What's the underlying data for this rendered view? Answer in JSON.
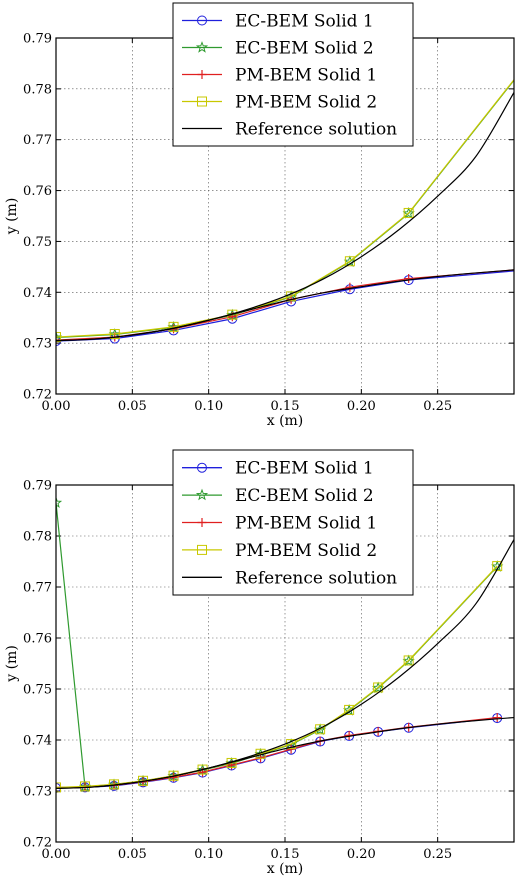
{
  "colors": {
    "ec1": "#1f1fdc",
    "ec2": "#2f9a2f",
    "pm1": "#e02020",
    "pm2": "#c8c800",
    "ref": "#000000"
  },
  "chart_data": [
    {
      "type": "line",
      "xlabel": "x (m)",
      "ylabel": "y (m)",
      "xlim": [
        0.0,
        0.3
      ],
      "ylim": [
        0.72,
        0.79
      ],
      "xticks": [
        "0.00",
        "0.05",
        "0.10",
        "0.15",
        "0.20",
        "0.25"
      ],
      "yticks": [
        "0.72",
        "0.73",
        "0.74",
        "0.75",
        "0.76",
        "0.77",
        "0.78",
        "0.79"
      ],
      "grid": true,
      "legend": "top-center",
      "series": [
        {
          "name": "EC-BEM Solid 1",
          "color_key": "ec1",
          "marker": "circle",
          "x": [
            0.0,
            0.0385,
            0.077,
            0.1155,
            0.154,
            0.1925,
            0.231,
            0.3
          ],
          "y": [
            0.7304,
            0.7309,
            0.7325,
            0.7348,
            0.7382,
            0.7406,
            0.7424,
            0.7442
          ]
        },
        {
          "name": "EC-BEM Solid 2",
          "color_key": "ec2",
          "marker": "star",
          "x": [
            0.0,
            0.0385,
            0.077,
            0.1155,
            0.154,
            0.1925,
            0.231,
            0.3
          ],
          "y": [
            0.7311,
            0.7317,
            0.7331,
            0.7355,
            0.7391,
            0.746,
            0.7555,
            0.7817
          ]
        },
        {
          "name": "PM-BEM Solid 1",
          "color_key": "pm1",
          "marker": "plus",
          "x": [
            0.0,
            0.0385,
            0.077,
            0.1155,
            0.154,
            0.1925,
            0.231,
            0.3
          ],
          "y": [
            0.7306,
            0.7312,
            0.7328,
            0.7352,
            0.7386,
            0.741,
            0.7427,
            0.7444
          ]
        },
        {
          "name": "PM-BEM Solid 2",
          "color_key": "pm2",
          "marker": "square",
          "x": [
            0.0,
            0.0385,
            0.077,
            0.1155,
            0.154,
            0.1925,
            0.231,
            0.3
          ],
          "y": [
            0.7312,
            0.7318,
            0.7332,
            0.7356,
            0.7392,
            0.7461,
            0.7556,
            0.7818
          ]
        },
        {
          "name": "Reference solution",
          "color_key": "ref",
          "marker": "none",
          "x": [
            0.0,
            0.025,
            0.05,
            0.075,
            0.1,
            0.125,
            0.15,
            0.175,
            0.2,
            0.225,
            0.25,
            0.275,
            0.3
          ],
          "y": [
            0.7305,
            0.7308,
            0.7316,
            0.7328,
            0.7345,
            0.7366,
            0.7392,
            0.7426,
            0.747,
            0.7524,
            0.7589,
            0.7667,
            0.7793
          ]
        },
        {
          "name": "",
          "color_key": "ref",
          "marker": "none",
          "x": [
            0.0,
            0.025,
            0.05,
            0.075,
            0.1,
            0.125,
            0.15,
            0.175,
            0.2,
            0.225,
            0.25,
            0.275,
            0.3
          ],
          "y": [
            0.7305,
            0.7308,
            0.7316,
            0.7328,
            0.7345,
            0.7364,
            0.7383,
            0.7399,
            0.7411,
            0.7422,
            0.7431,
            0.7438,
            0.7444
          ]
        }
      ]
    },
    {
      "type": "line",
      "xlabel": "x (m)",
      "ylabel": "y (m)",
      "xlim": [
        0.0,
        0.3
      ],
      "ylim": [
        0.72,
        0.79
      ],
      "xticks": [
        "0.00",
        "0.05",
        "0.10",
        "0.15",
        "0.20",
        "0.25"
      ],
      "yticks": [
        "0.72",
        "0.73",
        "0.74",
        "0.75",
        "0.76",
        "0.77",
        "0.78",
        "0.79"
      ],
      "grid": true,
      "legend": "top-center",
      "series": [
        {
          "name": "EC-BEM Solid 1",
          "color_key": "ec1",
          "marker": "circle",
          "x": [
            0.0,
            0.019,
            0.038,
            0.057,
            0.077,
            0.096,
            0.115,
            0.134,
            0.154,
            0.173,
            0.192,
            0.211,
            0.231,
            0.289
          ],
          "y": [
            0.7306,
            0.7307,
            0.731,
            0.7317,
            0.7326,
            0.7336,
            0.735,
            0.7364,
            0.7381,
            0.7397,
            0.7408,
            0.7416,
            0.7424,
            0.7443
          ]
        },
        {
          "name": "EC-BEM Solid 2",
          "color_key": "ec2",
          "marker": "star",
          "x": [
            0.0,
            0.019,
            0.038,
            0.057,
            0.077,
            0.096,
            0.115,
            0.134,
            0.154,
            0.173,
            0.192,
            0.211,
            0.231,
            0.289
          ],
          "y": [
            0.7865,
            0.7308,
            0.7312,
            0.7319,
            0.7329,
            0.7341,
            0.7354,
            0.7372,
            0.7391,
            0.742,
            0.7458,
            0.7502,
            0.7555,
            0.774
          ]
        },
        {
          "name": "PM-BEM Solid 1",
          "color_key": "pm1",
          "marker": "plus",
          "x": [
            0.0,
            0.019,
            0.038,
            0.057,
            0.077,
            0.096,
            0.115,
            0.134,
            0.154,
            0.173,
            0.192,
            0.211,
            0.231,
            0.289
          ],
          "y": [
            0.7307,
            0.7308,
            0.7311,
            0.7318,
            0.7327,
            0.7337,
            0.7351,
            0.7365,
            0.7382,
            0.7398,
            0.7409,
            0.7417,
            0.7425,
            0.7444
          ]
        },
        {
          "name": "PM-BEM Solid 2",
          "color_key": "pm2",
          "marker": "square",
          "x": [
            0.0,
            0.019,
            0.038,
            0.057,
            0.077,
            0.096,
            0.115,
            0.134,
            0.154,
            0.173,
            0.192,
            0.211,
            0.231,
            0.289
          ],
          "y": [
            0.7307,
            0.7309,
            0.7313,
            0.732,
            0.733,
            0.7342,
            0.7355,
            0.7373,
            0.7392,
            0.7421,
            0.7459,
            0.7503,
            0.7556,
            0.7741
          ]
        },
        {
          "name": "Reference solution",
          "color_key": "ref",
          "marker": "none",
          "x": [
            0.0,
            0.025,
            0.05,
            0.075,
            0.1,
            0.125,
            0.15,
            0.175,
            0.2,
            0.225,
            0.25,
            0.275,
            0.3
          ],
          "y": [
            0.7305,
            0.7308,
            0.7316,
            0.7328,
            0.7345,
            0.7366,
            0.7392,
            0.7426,
            0.747,
            0.7524,
            0.7589,
            0.7667,
            0.7793
          ]
        },
        {
          "name": "",
          "color_key": "ref",
          "marker": "none",
          "x": [
            0.0,
            0.025,
            0.05,
            0.075,
            0.1,
            0.125,
            0.15,
            0.175,
            0.2,
            0.225,
            0.25,
            0.275,
            0.3
          ],
          "y": [
            0.7305,
            0.7308,
            0.7316,
            0.7328,
            0.7345,
            0.7364,
            0.7383,
            0.7399,
            0.7411,
            0.7422,
            0.7431,
            0.7438,
            0.7444
          ]
        }
      ]
    }
  ]
}
